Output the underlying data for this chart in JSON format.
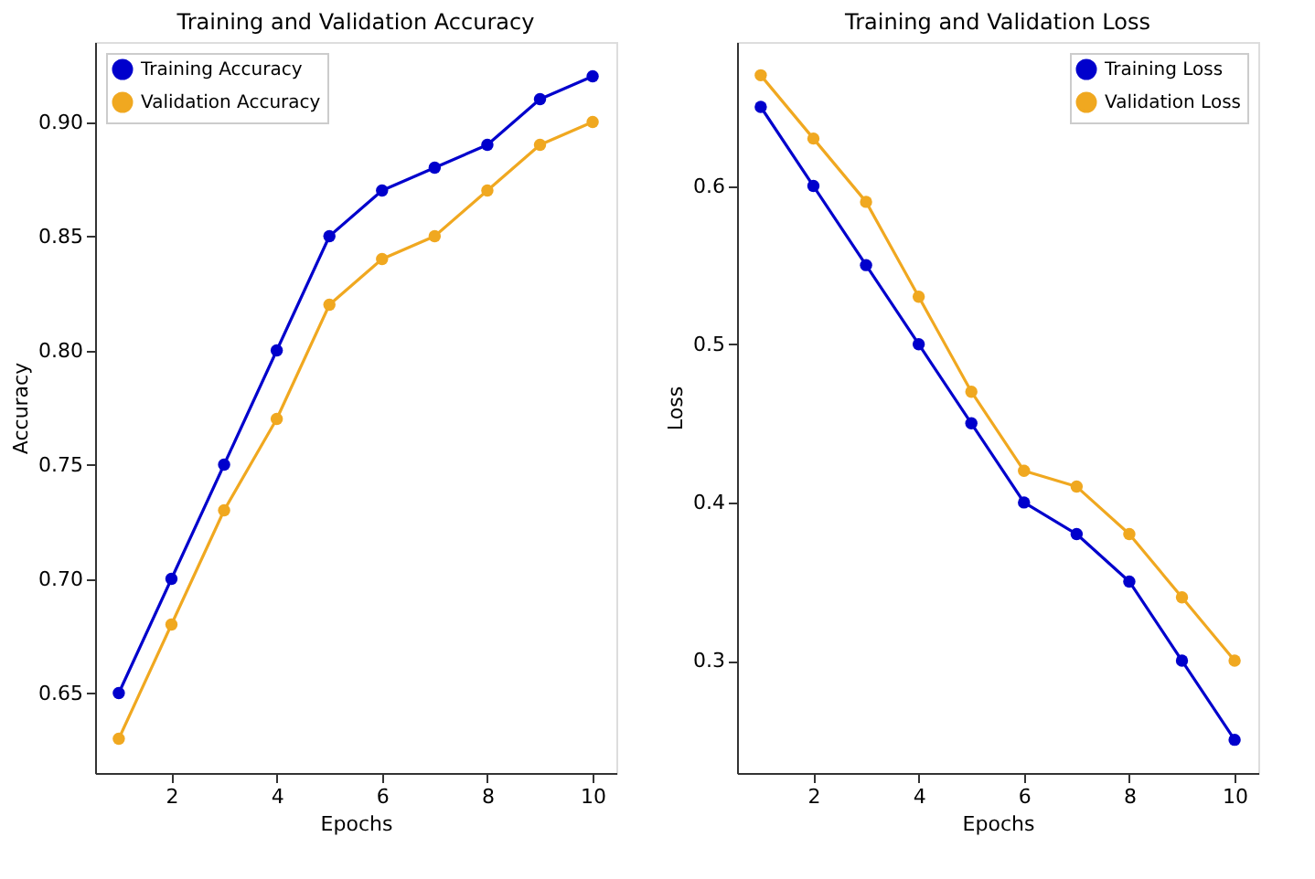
{
  "chart_data": [
    {
      "type": "line",
      "title": "Training and Validation Accuracy",
      "xlabel": "Epochs",
      "ylabel": "Accuracy",
      "x": [
        1,
        2,
        3,
        4,
        5,
        6,
        7,
        8,
        9,
        10
      ],
      "series": [
        {
          "name": "Training Accuracy",
          "color": "#0000cc",
          "values": [
            0.65,
            0.7,
            0.75,
            0.8,
            0.85,
            0.87,
            0.88,
            0.89,
            0.91,
            0.92
          ]
        },
        {
          "name": "Validation Accuracy",
          "color": "#f0a820",
          "values": [
            0.63,
            0.68,
            0.73,
            0.77,
            0.82,
            0.84,
            0.85,
            0.87,
            0.89,
            0.9
          ]
        }
      ],
      "xlim": [
        0.55,
        10.45
      ],
      "xticks": [
        2,
        4,
        6,
        8,
        10
      ],
      "ylim": [
        0.615,
        0.935
      ],
      "yticks": [
        {
          "value": 0.65,
          "label": "0.65"
        },
        {
          "value": 0.7,
          "label": "0.70"
        },
        {
          "value": 0.75,
          "label": "0.75"
        },
        {
          "value": 0.8,
          "label": "0.80"
        },
        {
          "value": 0.85,
          "label": "0.85"
        },
        {
          "value": 0.9,
          "label": "0.90"
        }
      ],
      "grid": false,
      "legend": "top left",
      "marker": "circle",
      "line_style": "solid"
    },
    {
      "type": "line",
      "title": "Training and Validation Loss",
      "xlabel": "Epochs",
      "ylabel": "Loss",
      "x": [
        1,
        2,
        3,
        4,
        5,
        6,
        7,
        8,
        9,
        10
      ],
      "series": [
        {
          "name": "Training Loss",
          "color": "#0000cc",
          "values": [
            0.65,
            0.6,
            0.55,
            0.5,
            0.45,
            0.4,
            0.38,
            0.35,
            0.3,
            0.25
          ]
        },
        {
          "name": "Validation Loss",
          "color": "#f0a820",
          "values": [
            0.67,
            0.63,
            0.59,
            0.53,
            0.47,
            0.42,
            0.41,
            0.38,
            0.34,
            0.3
          ]
        }
      ],
      "xlim": [
        0.55,
        10.45
      ],
      "xticks": [
        2,
        4,
        6,
        8,
        10
      ],
      "ylim": [
        0.229,
        0.691
      ],
      "yticks": [
        0.3,
        0.4,
        0.5,
        0.6
      ],
      "grid": false,
      "legend": "top right",
      "marker": "circle",
      "line_style": "solid"
    }
  ]
}
